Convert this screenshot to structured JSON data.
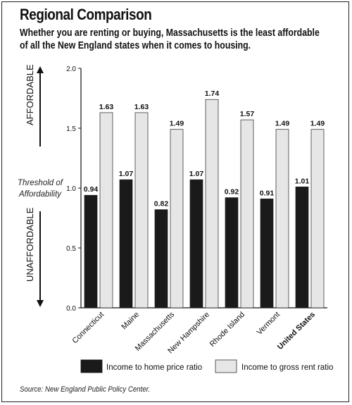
{
  "title": "Regional Comparison",
  "subtitle": "Whether you are renting or buying, Massachusetts is the least affordable of all the New England states when it comes to housing.",
  "source": "Source: New England Public Policy Center.",
  "side_labels": {
    "affordable": "AFFORDABLE",
    "unaffordable": "UNAFFORDABLE",
    "threshold_line1": "Threshold of",
    "threshold_line2": "Affordability"
  },
  "chart_data": {
    "type": "bar",
    "categories": [
      "Connecticut",
      "Maine",
      "Massachusetts",
      "New Hampshire",
      "Rhode Island",
      "Vermont",
      "United States"
    ],
    "bold_category": "United States",
    "series": [
      {
        "name": "Income to home price ratio",
        "color": "#1a1a1a",
        "values": [
          0.94,
          1.07,
          0.82,
          1.07,
          0.92,
          0.91,
          1.01
        ]
      },
      {
        "name": "Income to gross rent ratio",
        "color": "#e6e6e6",
        "values": [
          1.63,
          1.63,
          1.49,
          1.74,
          1.57,
          1.49,
          1.49
        ]
      }
    ],
    "ylim": [
      0,
      2.0
    ],
    "yticks": [
      "0.0",
      "0.5",
      "1.0",
      "1.5",
      "2.0"
    ],
    "xlabel": "",
    "ylabel": "",
    "grid": false,
    "legend_position": "bottom"
  }
}
